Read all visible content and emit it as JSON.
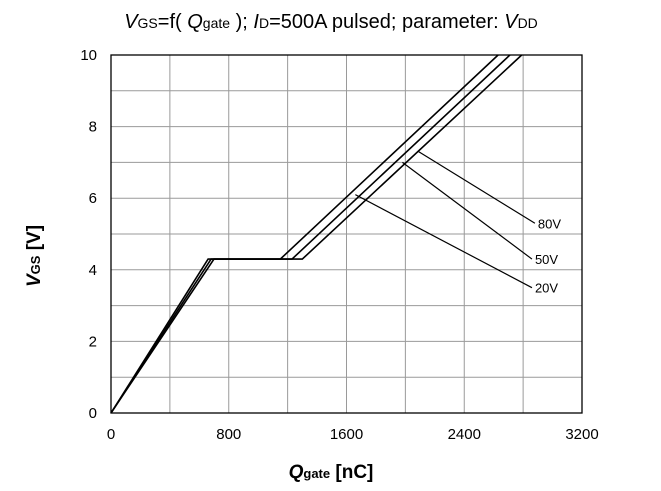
{
  "chart_data": {
    "type": "line",
    "title": {
      "v": "V",
      "v_sub": "GS",
      "eq": "=f( ",
      "q": "Q",
      "q_sub": "gate",
      "mid": " );  ",
      "i": "I",
      "i_sub": "D",
      "rest": "=500A pulsed; parameter: ",
      "vdd": "V",
      "vdd_sub": "DD"
    },
    "xlabel": {
      "main": "Q",
      "sub": "gate",
      "unit": " [nC]"
    },
    "ylabel": {
      "main": "V",
      "sub": "GS",
      "unit": " [V]"
    },
    "xlim": [
      0,
      3200
    ],
    "ylim": [
      0,
      10
    ],
    "x_ticks": [
      "0",
      "800",
      "1600",
      "2400",
      "3200"
    ],
    "y_ticks": [
      "0",
      "2",
      "4",
      "6",
      "8",
      "10"
    ],
    "grid": true,
    "series": [
      {
        "name": "20V",
        "x": [
          0,
          660,
          1150,
          2630
        ],
        "y": [
          0,
          4.3,
          4.3,
          10
        ]
      },
      {
        "name": "50V",
        "x": [
          0,
          680,
          1230,
          2710
        ],
        "y": [
          0,
          4.3,
          4.3,
          10
        ]
      },
      {
        "name": "80V",
        "x": [
          0,
          700,
          1300,
          2790
        ],
        "y": [
          0,
          4.3,
          4.3,
          10
        ]
      }
    ],
    "annotations": [
      {
        "text": "80V",
        "from": [
          2090,
          7.3
        ],
        "to": [
          2880,
          5.3
        ]
      },
      {
        "text": "50V",
        "from": [
          1980,
          7.0
        ],
        "to": [
          2860,
          4.3
        ]
      },
      {
        "text": "20V",
        "from": [
          1660,
          6.1
        ],
        "to": [
          2860,
          3.5
        ]
      }
    ]
  }
}
